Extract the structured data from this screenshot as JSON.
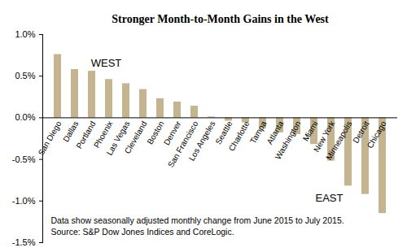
{
  "chart_data": {
    "type": "bar",
    "title": "Stronger Month-to-Month Gains in the West",
    "categories": [
      "San Diego",
      "Dallas",
      "Portland",
      "Phoenix",
      "Las Vegas",
      "Cleveland",
      "Boston",
      "Denver",
      "San Francisco",
      "Los Angeles",
      "Seattle",
      "Charlotte",
      "Tampa",
      "Atlanta",
      "Washington",
      "Miami",
      "New York",
      "Minneapolis",
      "Detroit",
      "Chicago"
    ],
    "values": [
      0.76,
      0.58,
      0.56,
      0.46,
      0.41,
      0.34,
      0.23,
      0.19,
      0.14,
      0.01,
      -0.04,
      -0.06,
      -0.13,
      -0.18,
      -0.2,
      -0.32,
      -0.52,
      -0.82,
      -0.92,
      -1.15
    ],
    "color": "#c4b590",
    "ylim": [
      -1.5,
      1.0
    ],
    "yticks": [
      {
        "value": -1.5,
        "label": "-1.5%"
      },
      {
        "value": -1.0,
        "label": "-1.0%"
      },
      {
        "value": -0.5,
        "label": "-0.5%"
      },
      {
        "value": 0.0,
        "label": "0.0%"
      },
      {
        "value": 0.5,
        "label": "0.5%"
      },
      {
        "value": 1.0,
        "label": "1.0%"
      }
    ],
    "grid": false,
    "annotations": [
      "WEST",
      "EAST",
      "Data show seasonally adjusted monthly change from June 2015 to July 2015.",
      "Source: S&P Dow Jones Indices and CoreLogic."
    ]
  }
}
